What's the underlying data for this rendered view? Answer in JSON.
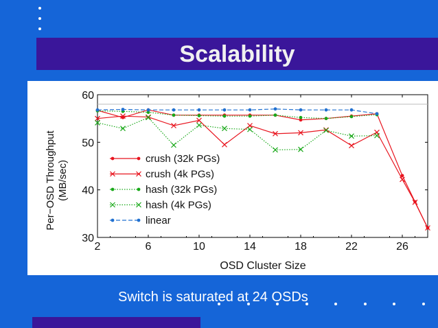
{
  "slide": {
    "title": "Scalability",
    "caption": "Switch is saturated at 24 OSDs",
    "colors": {
      "background": "#1565d8",
      "band": "#3a169a",
      "title_text": "#f0f0f0"
    }
  },
  "chart_data": {
    "type": "line",
    "xlabel": "OSD Cluster Size",
    "ylabel_line1": "Per−OSD Throughput",
    "ylabel_line2": "(MB/sec)",
    "xlim": [
      2,
      28
    ],
    "ylim": [
      30,
      60
    ],
    "xticks": [
      2,
      6,
      10,
      14,
      18,
      22,
      26
    ],
    "yticks": [
      30,
      40,
      50,
      60
    ],
    "reference_line": 58,
    "legend_position": "bottom-left",
    "series": [
      {
        "name": "crush (32k PGs)",
        "color": "#e8141e",
        "dash": "solid",
        "marker": "dot",
        "x": [
          2,
          4,
          6,
          8,
          10,
          12,
          14,
          16,
          18,
          20,
          22,
          24,
          26,
          27,
          28
        ],
        "y": [
          56.7,
          55.2,
          56.8,
          55.7,
          55.7,
          55.7,
          55.7,
          55.7,
          54.7,
          55.0,
          55.5,
          56.0,
          43.0,
          37.5,
          32.0
        ]
      },
      {
        "name": "crush (4k PGs)",
        "color": "#e8141e",
        "dash": "solid",
        "marker": "x",
        "x": [
          2,
          4,
          6,
          8,
          10,
          12,
          14,
          16,
          18,
          20,
          22,
          24,
          26,
          27,
          28
        ],
        "y": [
          55.0,
          55.5,
          55.3,
          53.5,
          54.6,
          49.5,
          53.5,
          51.8,
          52.0,
          52.6,
          49.3,
          52.1,
          42.2,
          37.4,
          32.0
        ]
      },
      {
        "name": "hash (32k PGs)",
        "color": "#18a818",
        "dash": "dotted",
        "marker": "dot",
        "x": [
          2,
          4,
          6,
          8,
          10,
          12,
          14,
          16,
          18,
          20,
          22,
          24
        ],
        "y": [
          56.6,
          56.5,
          56.3,
          55.7,
          55.6,
          55.5,
          55.5,
          55.7,
          55.2,
          55.0,
          55.4,
          55.8
        ]
      },
      {
        "name": "hash (4k PGs)",
        "color": "#18a818",
        "dash": "dotted",
        "marker": "x",
        "x": [
          2,
          4,
          6,
          8,
          10,
          12,
          14,
          16,
          18,
          20,
          22,
          24
        ],
        "y": [
          54.1,
          52.9,
          55.2,
          49.4,
          53.6,
          52.9,
          52.7,
          48.4,
          48.5,
          52.5,
          51.3,
          51.4
        ]
      },
      {
        "name": "linear",
        "color": "#2070d0",
        "dash": "dashed",
        "marker": "dot",
        "x": [
          2,
          4,
          6,
          8,
          10,
          12,
          14,
          16,
          18,
          20,
          22,
          24
        ],
        "y": [
          56.8,
          56.9,
          56.8,
          56.8,
          56.8,
          56.8,
          56.8,
          57.0,
          56.8,
          56.8,
          56.8,
          56.0
        ]
      }
    ]
  }
}
